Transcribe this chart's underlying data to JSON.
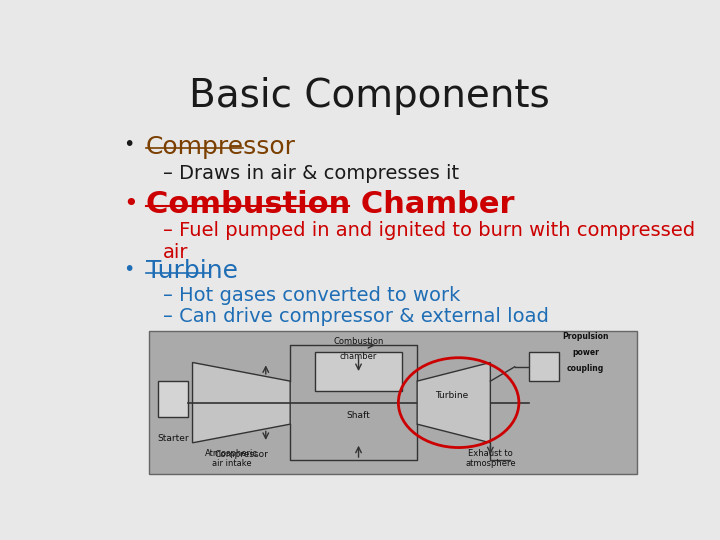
{
  "title": "Basic Components",
  "title_fontsize": 28,
  "title_color": "#1a1a1a",
  "slide_bg": "#e8e8e8",
  "bullet1_text": "Compressor",
  "bullet1_color": "#7b3f00",
  "bullet1_fontsize": 18,
  "bullet1_sub": "Draws in air & compresses it",
  "bullet1_sub_color": "#1a1a1a",
  "bullet1_sub_fontsize": 14,
  "bullet2_text": "Combustion Chamber",
  "bullet2_color": "#cc0000",
  "bullet2_fontsize": 22,
  "bullet2_sub": "Fuel pumped in and ignited to burn with compressed\nair",
  "bullet2_sub_color": "#cc0000",
  "bullet2_sub_fontsize": 14,
  "bullet3_text": "Turbine",
  "bullet3_color": "#1f6eb5",
  "bullet3_fontsize": 18,
  "bullet3_sub1": "Hot gases converted to work",
  "bullet3_sub2": "Can drive compressor & external load",
  "bullet3_sub_color": "#1f6eb5",
  "bullet3_sub_fontsize": 14,
  "bullet_color": "#1a1a1a"
}
